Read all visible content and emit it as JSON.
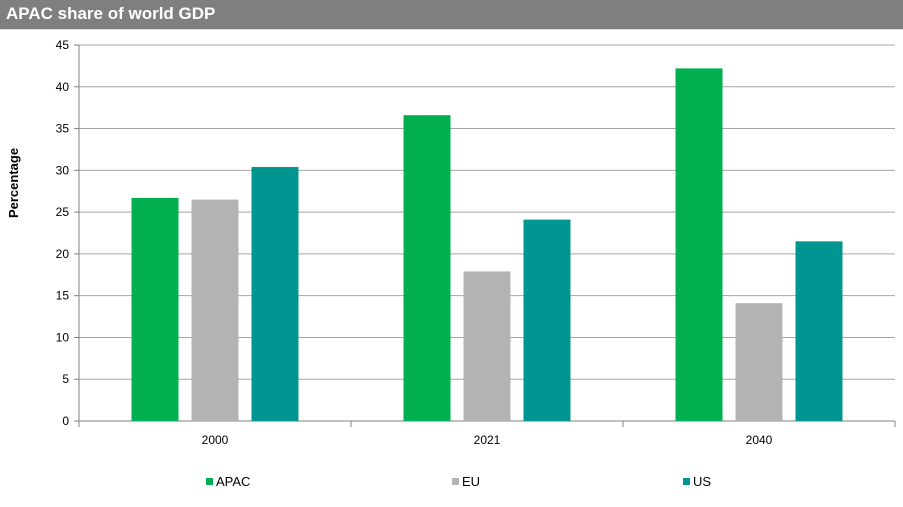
{
  "header": {
    "title": "APAC share of world GDP"
  },
  "chart_data": {
    "type": "bar",
    "title": "APAC share of world GDP",
    "xlabel": "",
    "ylabel": "Percentage",
    "categories": [
      "2000",
      "2021",
      "2040"
    ],
    "series": [
      {
        "name": "APAC",
        "color": "#00b050",
        "values": [
          26.7,
          36.6,
          42.2
        ]
      },
      {
        "name": "EU",
        "color": "#b3b3b3",
        "values": [
          26.5,
          17.9,
          14.1
        ]
      },
      {
        "name": "US",
        "color": "#009591",
        "values": [
          30.4,
          24.1,
          21.5
        ]
      }
    ],
    "ylim": [
      0,
      45
    ],
    "yticks": [
      0,
      5,
      10,
      15,
      20,
      25,
      30,
      35,
      40,
      45
    ],
    "grid": true,
    "legend": "bottom"
  }
}
